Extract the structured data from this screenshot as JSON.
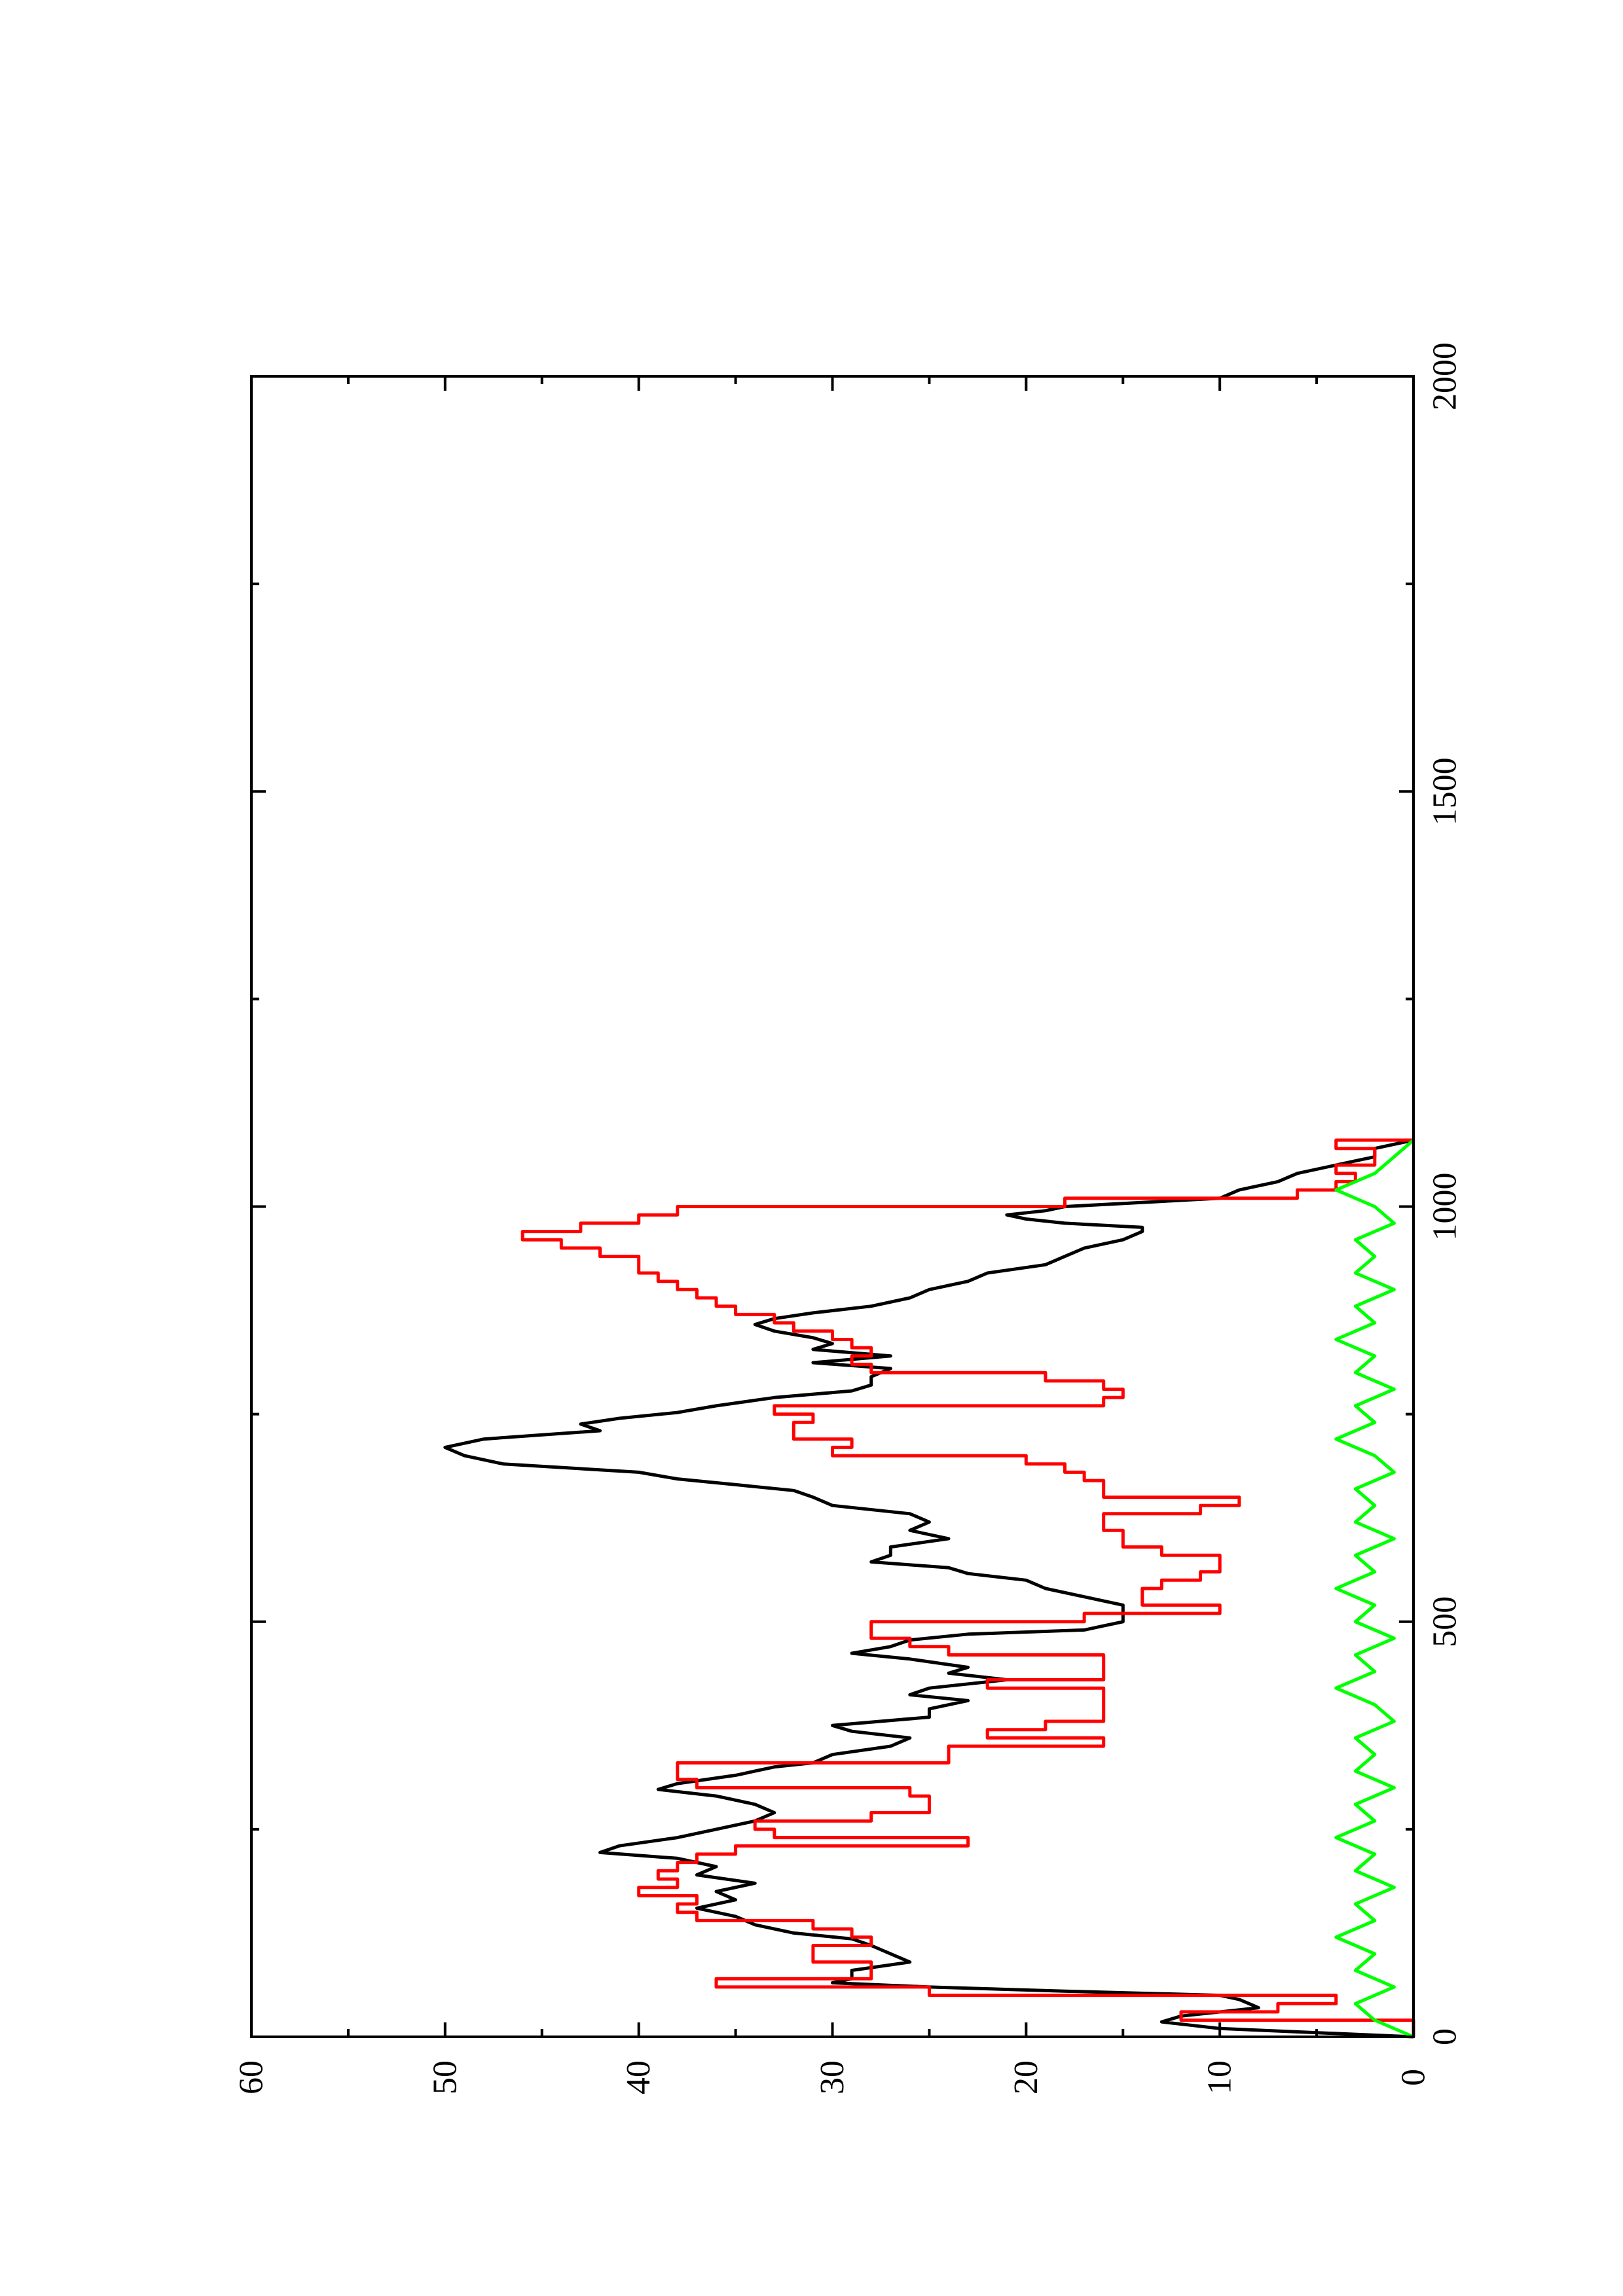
{
  "chart_data": {
    "type": "line",
    "orientation": "rotated-90-ccw",
    "title": "",
    "xlabel": "",
    "ylabel": "",
    "xlim": [
      0,
      2000
    ],
    "ylim": [
      0,
      60
    ],
    "x_ticks": [
      0,
      500,
      1000,
      1500,
      2000
    ],
    "y_ticks": [
      0,
      10,
      20,
      30,
      40,
      50,
      60
    ],
    "x_tick_labels": [
      "0",
      "500",
      "1000",
      "1500",
      "2000"
    ],
    "y_tick_labels": [
      "0",
      "10",
      "20",
      "30",
      "40",
      "50",
      "60"
    ],
    "grid": false,
    "legend": "none",
    "series": [
      {
        "color": "#000000",
        "style": "line",
        "points": [
          [
            0,
            0
          ],
          [
            10,
            10
          ],
          [
            18,
            13
          ],
          [
            25,
            12
          ],
          [
            35,
            8
          ],
          [
            45,
            9
          ],
          [
            50,
            10
          ],
          [
            55,
            18
          ],
          [
            60,
            25
          ],
          [
            65,
            30
          ],
          [
            70,
            29
          ],
          [
            80,
            29
          ],
          [
            90,
            26
          ],
          [
            100,
            27
          ],
          [
            110,
            28
          ],
          [
            118,
            29
          ],
          [
            125,
            32
          ],
          [
            135,
            34
          ],
          [
            145,
            35
          ],
          [
            155,
            37
          ],
          [
            165,
            35
          ],
          [
            175,
            36
          ],
          [
            185,
            34
          ],
          [
            195,
            37
          ],
          [
            205,
            36
          ],
          [
            215,
            38
          ],
          [
            222,
            42
          ],
          [
            230,
            41
          ],
          [
            240,
            38
          ],
          [
            250,
            36
          ],
          [
            260,
            34
          ],
          [
            270,
            33
          ],
          [
            280,
            34
          ],
          [
            290,
            36
          ],
          [
            298,
            39
          ],
          [
            305,
            38
          ],
          [
            315,
            35
          ],
          [
            325,
            33
          ],
          [
            330,
            31
          ],
          [
            340,
            30
          ],
          [
            350,
            27
          ],
          [
            360,
            26
          ],
          [
            368,
            29
          ],
          [
            375,
            30
          ],
          [
            385,
            25
          ],
          [
            395,
            25
          ],
          [
            405,
            23
          ],
          [
            412,
            26
          ],
          [
            420,
            25
          ],
          [
            430,
            21
          ],
          [
            438,
            24
          ],
          [
            445,
            23
          ],
          [
            455,
            26
          ],
          [
            462,
            29
          ],
          [
            470,
            27
          ],
          [
            478,
            26
          ],
          [
            485,
            23
          ],
          [
            490,
            17
          ],
          [
            495,
            16
          ],
          [
            500,
            15
          ],
          [
            510,
            15
          ],
          [
            520,
            15
          ],
          [
            530,
            17
          ],
          [
            540,
            19
          ],
          [
            550,
            20
          ],
          [
            558,
            23
          ],
          [
            565,
            24
          ],
          [
            572,
            28
          ],
          [
            580,
            27
          ],
          [
            590,
            27
          ],
          [
            600,
            24
          ],
          [
            610,
            26
          ],
          [
            620,
            25
          ],
          [
            630,
            26
          ],
          [
            640,
            30
          ],
          [
            650,
            31
          ],
          [
            658,
            32
          ],
          [
            665,
            35
          ],
          [
            672,
            38
          ],
          [
            680,
            40
          ],
          [
            690,
            47
          ],
          [
            700,
            49
          ],
          [
            710,
            50
          ],
          [
            720,
            48
          ],
          [
            730,
            42
          ],
          [
            738,
            43
          ],
          [
            745,
            41
          ],
          [
            752,
            38
          ],
          [
            760,
            36
          ],
          [
            770,
            33
          ],
          [
            778,
            29
          ],
          [
            785,
            28
          ],
          [
            795,
            28
          ],
          [
            805,
            27
          ],
          [
            812,
            31
          ],
          [
            820,
            27
          ],
          [
            828,
            31
          ],
          [
            835,
            30
          ],
          [
            842,
            31
          ],
          [
            850,
            33
          ],
          [
            858,
            34
          ],
          [
            865,
            33
          ],
          [
            872,
            31
          ],
          [
            880,
            28
          ],
          [
            890,
            26
          ],
          [
            900,
            25
          ],
          [
            910,
            23
          ],
          [
            920,
            22
          ],
          [
            930,
            19
          ],
          [
            940,
            18
          ],
          [
            950,
            17
          ],
          [
            960,
            15
          ],
          [
            970,
            14
          ],
          [
            975,
            14
          ],
          [
            980,
            18
          ],
          [
            985,
            20
          ],
          [
            990,
            21
          ],
          [
            995,
            19
          ],
          [
            1000,
            18
          ],
          [
            1010,
            10
          ],
          [
            1020,
            9
          ],
          [
            1030,
            7
          ],
          [
            1040,
            6
          ],
          [
            1050,
            4
          ],
          [
            1055,
            3
          ],
          [
            1060,
            2
          ],
          [
            1065,
            2
          ],
          [
            1070,
            2
          ],
          [
            1080,
            0
          ]
        ]
      },
      {
        "color": "#ff0000",
        "style": "step",
        "points": [
          [
            0,
            0
          ],
          [
            20,
            12
          ],
          [
            30,
            7
          ],
          [
            40,
            4
          ],
          [
            50,
            25
          ],
          [
            60,
            36
          ],
          [
            70,
            28
          ],
          [
            80,
            28
          ],
          [
            90,
            31
          ],
          [
            100,
            31
          ],
          [
            110,
            28
          ],
          [
            120,
            29
          ],
          [
            130,
            31
          ],
          [
            140,
            37
          ],
          [
            150,
            38
          ],
          [
            160,
            37
          ],
          [
            170,
            40
          ],
          [
            180,
            38
          ],
          [
            190,
            39
          ],
          [
            200,
            38
          ],
          [
            210,
            37
          ],
          [
            220,
            35
          ],
          [
            230,
            23
          ],
          [
            240,
            33
          ],
          [
            250,
            34
          ],
          [
            260,
            28
          ],
          [
            270,
            25
          ],
          [
            280,
            25
          ],
          [
            290,
            26
          ],
          [
            300,
            37
          ],
          [
            310,
            38
          ],
          [
            320,
            38
          ],
          [
            330,
            24
          ],
          [
            340,
            24
          ],
          [
            350,
            16
          ],
          [
            360,
            22
          ],
          [
            370,
            19
          ],
          [
            380,
            16
          ],
          [
            390,
            16
          ],
          [
            400,
            16
          ],
          [
            410,
            16
          ],
          [
            420,
            22
          ],
          [
            430,
            16
          ],
          [
            440,
            16
          ],
          [
            450,
            16
          ],
          [
            460,
            24
          ],
          [
            470,
            26
          ],
          [
            480,
            28
          ],
          [
            490,
            28
          ],
          [
            500,
            17
          ],
          [
            510,
            10
          ],
          [
            520,
            14
          ],
          [
            530,
            14
          ],
          [
            540,
            13
          ],
          [
            550,
            11
          ],
          [
            560,
            10
          ],
          [
            570,
            10
          ],
          [
            580,
            13
          ],
          [
            590,
            15
          ],
          [
            600,
            15
          ],
          [
            610,
            16
          ],
          [
            620,
            16
          ],
          [
            630,
            11
          ],
          [
            640,
            9
          ],
          [
            650,
            16
          ],
          [
            660,
            16
          ],
          [
            670,
            17
          ],
          [
            680,
            18
          ],
          [
            690,
            20
          ],
          [
            700,
            30
          ],
          [
            710,
            29
          ],
          [
            720,
            32
          ],
          [
            730,
            32
          ],
          [
            740,
            31
          ],
          [
            750,
            33
          ],
          [
            760,
            16
          ],
          [
            770,
            15
          ],
          [
            780,
            16
          ],
          [
            790,
            19
          ],
          [
            800,
            28
          ],
          [
            810,
            29
          ],
          [
            820,
            28
          ],
          [
            830,
            29
          ],
          [
            840,
            30
          ],
          [
            850,
            32
          ],
          [
            860,
            33
          ],
          [
            870,
            35
          ],
          [
            880,
            36
          ],
          [
            890,
            37
          ],
          [
            900,
            38
          ],
          [
            910,
            39
          ],
          [
            920,
            40
          ],
          [
            930,
            40
          ],
          [
            940,
            42
          ],
          [
            950,
            44
          ],
          [
            960,
            46
          ],
          [
            970,
            43
          ],
          [
            980,
            40
          ],
          [
            990,
            38
          ],
          [
            1000,
            18
          ],
          [
            1010,
            6
          ],
          [
            1020,
            4
          ],
          [
            1030,
            3
          ],
          [
            1040,
            4
          ],
          [
            1050,
            2
          ],
          [
            1060,
            2
          ],
          [
            1070,
            4
          ],
          [
            1080,
            0
          ]
        ]
      },
      {
        "color": "#00ff00",
        "style": "line",
        "points": [
          [
            0,
            0
          ],
          [
            20,
            2
          ],
          [
            40,
            3
          ],
          [
            60,
            1
          ],
          [
            80,
            3
          ],
          [
            100,
            2
          ],
          [
            120,
            4
          ],
          [
            140,
            2
          ],
          [
            160,
            3
          ],
          [
            180,
            1
          ],
          [
            200,
            3
          ],
          [
            220,
            2
          ],
          [
            240,
            4
          ],
          [
            260,
            2
          ],
          [
            280,
            3
          ],
          [
            300,
            1
          ],
          [
            320,
            3
          ],
          [
            340,
            2
          ],
          [
            360,
            3
          ],
          [
            380,
            1
          ],
          [
            400,
            2
          ],
          [
            420,
            4
          ],
          [
            440,
            2
          ],
          [
            460,
            3
          ],
          [
            480,
            1
          ],
          [
            500,
            3
          ],
          [
            520,
            2
          ],
          [
            540,
            4
          ],
          [
            560,
            2
          ],
          [
            580,
            3
          ],
          [
            600,
            1
          ],
          [
            620,
            3
          ],
          [
            640,
            2
          ],
          [
            660,
            3
          ],
          [
            680,
            1
          ],
          [
            700,
            2
          ],
          [
            720,
            4
          ],
          [
            740,
            2
          ],
          [
            760,
            3
          ],
          [
            780,
            1
          ],
          [
            800,
            3
          ],
          [
            820,
            2
          ],
          [
            840,
            4
          ],
          [
            860,
            2
          ],
          [
            880,
            3
          ],
          [
            900,
            1
          ],
          [
            920,
            3
          ],
          [
            940,
            2
          ],
          [
            960,
            3
          ],
          [
            980,
            1
          ],
          [
            1000,
            2
          ],
          [
            1020,
            4
          ],
          [
            1040,
            2
          ],
          [
            1060,
            1
          ],
          [
            1080,
            0
          ]
        ]
      }
    ]
  }
}
